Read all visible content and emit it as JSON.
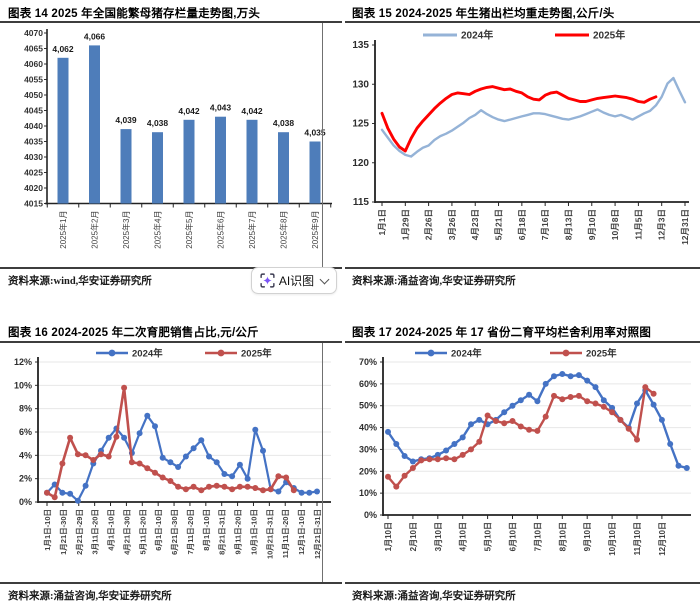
{
  "panels": [
    {
      "title": "图表 14 2025 年全国能繁母猪存栏量走势图,万头",
      "source": "资料来源:wind,华安证券研究所"
    },
    {
      "title": "图表 15 2024-2025 年生猪出栏均重走势图,公斤/头",
      "source": "资料来源:涌益咨询,华安证券研究所"
    },
    {
      "title": "图表 16 2024-2025 年二次育肥销售占比,元/公斤",
      "source": "资料来源:涌益咨询,华安证券研究所"
    },
    {
      "title": "图表 17 2024-2025 年 17 省份二育平均栏舍利用率对照图",
      "source": "资料来源:涌益咨询,华安证券研究所"
    }
  ],
  "ai_button": {
    "label": "AI识图",
    "icon": "ai-scan-icon",
    "accent": "#7b55f7"
  },
  "chart_data": [
    {
      "id": "fig14",
      "type": "bar",
      "title": "2025 年全国能繁母猪存栏量走势图,万头",
      "categories": [
        "2025年1月",
        "2025年2月",
        "2025年3月",
        "2025年4月",
        "2025年5月",
        "2025年6月",
        "2025年7月",
        "2025年8月",
        "2025年9月"
      ],
      "values": [
        4062,
        4066,
        4039,
        4038,
        4042,
        4043,
        4042,
        4038,
        4035
      ],
      "value_labels": [
        "4,062",
        "4,066",
        "4,039",
        "4,038",
        "4,042",
        "4,043",
        "4,042",
        "4,038",
        "4,035"
      ],
      "ylim": [
        4015,
        4070
      ],
      "ytick_step": 5,
      "yticks": [
        "4015",
        "4020",
        "4025",
        "4030",
        "4035",
        "4040",
        "4045",
        "4050",
        "4055",
        "4060",
        "4065",
        "4070"
      ],
      "bar_color": "#4e7dba",
      "grid": false
    },
    {
      "id": "fig15",
      "type": "line",
      "title": "2024-2025 年生猪出栏均重走势图,公斤/头",
      "ylim": [
        115,
        135
      ],
      "ytick_step": 5,
      "yticks": [
        "115",
        "120",
        "125",
        "130",
        "135"
      ],
      "xticks": [
        "1月1日",
        "1月29日",
        "2月26日",
        "3月26日",
        "4月23日",
        "5月21日",
        "6月18日",
        "7月16日",
        "8月13日",
        "9月10日",
        "10月8日",
        "11月5日",
        "12月3日",
        "12月31日"
      ],
      "grid": false,
      "series": [
        {
          "name": "2024年",
          "color": "#95b3d7",
          "width": 2.4,
          "marker": false,
          "values": [
            124.2,
            123.2,
            122.2,
            121.5,
            121.0,
            120.8,
            121.4,
            121.9,
            122.2,
            122.9,
            123.4,
            123.7,
            124.1,
            124.6,
            125.1,
            125.7,
            126.1,
            126.7,
            126.2,
            125.8,
            125.5,
            125.3,
            125.5,
            125.7,
            125.9,
            126.1,
            126.3,
            126.3,
            126.2,
            126.0,
            125.8,
            125.6,
            125.5,
            125.7,
            125.9,
            126.2,
            126.5,
            126.8,
            126.4,
            126.1,
            125.9,
            126.1,
            125.8,
            125.5,
            125.9,
            126.3,
            126.6,
            127.3,
            128.4,
            130.1,
            130.8,
            129.2,
            127.7
          ]
        },
        {
          "name": "2025年",
          "color": "#fe0000",
          "width": 2.9,
          "marker": false,
          "values": [
            126.3,
            124.4,
            123.0,
            122.0,
            121.5,
            123.1,
            124.4,
            125.3,
            126.1,
            126.9,
            127.6,
            128.2,
            128.7,
            128.9,
            128.8,
            128.7,
            129.1,
            129.4,
            129.6,
            129.7,
            129.5,
            129.3,
            129.4,
            129.1,
            128.9,
            128.4,
            128.1,
            128.0,
            128.6,
            128.9,
            129.0,
            128.6,
            128.2,
            128.0,
            127.8,
            127.8,
            128.0,
            128.2,
            128.3,
            128.4,
            128.5,
            128.4,
            128.3,
            128.1,
            127.8,
            127.7,
            128.1,
            128.4,
            null,
            null,
            null,
            null,
            null
          ]
        }
      ]
    },
    {
      "id": "fig16",
      "type": "line",
      "title": "2024-2025 年二次育肥销售占比,元/公斤",
      "ylim": [
        0,
        12
      ],
      "ytick_step": 2,
      "ytick_suffix": "%",
      "yticks": [
        "0%",
        "2%",
        "4%",
        "6%",
        "8%",
        "10%",
        "12%"
      ],
      "xticks": [
        "1月1日-10日",
        "1月21日-30日",
        "2月21日-29日",
        "3月11日-20日",
        "4月1日-10日",
        "4月21日-30日",
        "5月11日-20日",
        "6月1日-10日",
        "6月21日-30日",
        "7月11日-20日",
        "8月1日-10日",
        "8月21日-31日",
        "9月11日-20日",
        "10月1日-10日",
        "10月21日-31日",
        "11月11日-20日",
        "12月1日-10日",
        "12月21日-31日"
      ],
      "grid": true,
      "series": [
        {
          "name": "2024年",
          "color": "#4472c4",
          "width": 2.2,
          "marker": true,
          "values": [
            0.8,
            1.5,
            0.8,
            0.7,
            0.1,
            1.4,
            3.3,
            4.4,
            5.5,
            6.3,
            5.5,
            4.2,
            5.9,
            7.4,
            6.5,
            3.8,
            3.4,
            3.0,
            3.9,
            4.6,
            5.3,
            3.9,
            3.4,
            2.4,
            2.2,
            3.2,
            2.0,
            6.2,
            4.4,
            1.1,
            0.9,
            1.7,
            1.2,
            0.8,
            0.8,
            0.9
          ]
        },
        {
          "name": "2025年",
          "color": "#c0504d",
          "width": 2.6,
          "marker": true,
          "values": [
            0.8,
            0.4,
            3.3,
            5.5,
            4.1,
            4.0,
            3.6,
            4.1,
            3.9,
            5.6,
            9.8,
            3.4,
            3.3,
            2.9,
            2.5,
            2.1,
            1.8,
            1.3,
            1.1,
            1.3,
            1.0,
            1.3,
            1.4,
            1.3,
            1.1,
            1.3,
            1.3,
            1.2,
            1.0,
            1.1,
            2.2,
            2.1,
            1.0,
            null,
            null,
            null
          ]
        }
      ]
    },
    {
      "id": "fig17",
      "type": "line",
      "title": "2024-2025 年 17 省份二育平均栏舍利用率对照图",
      "ylim": [
        0,
        70
      ],
      "ytick_step": 10,
      "ytick_suffix": "%",
      "yticks": [
        "0%",
        "10%",
        "20%",
        "30%",
        "40%",
        "50%",
        "60%",
        "70%"
      ],
      "xticks": [
        "1月10日",
        "2月10日",
        "3月10日",
        "4月10日",
        "5月10日",
        "6月10日",
        "7月10日",
        "8月10日",
        "9月10日",
        "10月10日",
        "11月10日",
        "12月10日"
      ],
      "grid": true,
      "series": [
        {
          "name": "2024年",
          "color": "#4472c4",
          "width": 2.4,
          "marker": true,
          "values": [
            38,
            32.5,
            27,
            24.5,
            25.5,
            26,
            27.5,
            29.5,
            32.5,
            35.5,
            41.5,
            43.5,
            41.5,
            43.5,
            47,
            50,
            52.5,
            55,
            52,
            60,
            63.5,
            64.5,
            63.5,
            64,
            61.5,
            58.5,
            52.5,
            49,
            43.5,
            40,
            51,
            57,
            50.5,
            43.5,
            32.5,
            22.5,
            21.5
          ]
        },
        {
          "name": "2025年",
          "color": "#c0504d",
          "width": 2.4,
          "marker": true,
          "values": [
            17.5,
            13,
            18,
            21.5,
            25,
            25.5,
            25.5,
            26,
            25.5,
            27.5,
            30,
            33.5,
            45.5,
            43,
            42,
            43,
            40.5,
            39,
            38.5,
            45,
            54.5,
            53,
            54,
            54.5,
            52,
            51,
            49.5,
            47,
            43.5,
            39.5,
            34.5,
            58.5,
            55.5,
            null,
            null,
            null,
            null
          ]
        }
      ]
    }
  ]
}
